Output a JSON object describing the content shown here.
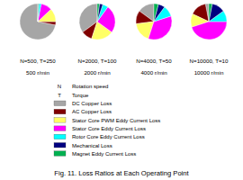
{
  "chart_data": [
    {
      "type": "pie",
      "title": "N=500, T=250",
      "subtitle": "500 r/min",
      "categories": [
        "DC Copper Loss",
        "AC Copper Loss",
        "Stator Core PWM Eddy Current Loss",
        "Stator Core Eddy Current Loss",
        "Rotor Core Eddy Current Loss",
        "Mechanical Loss",
        "Magnet Eddy Current Loss"
      ],
      "colors": [
        "#a6a6a6",
        "#800000",
        "#ffff66",
        "#ff00ff",
        "#00ffff",
        "#000080",
        "#00b050"
      ],
      "values": [
        72,
        3,
        12,
        10,
        2,
        0.5,
        0.5
      ]
    },
    {
      "type": "pie",
      "title": "N=2000, T=100",
      "subtitle": "2000 r/min",
      "categories": [
        "DC Copper Loss",
        "AC Copper Loss",
        "Stator Core PWM Eddy Current Loss",
        "Stator Core Eddy Current Loss",
        "Rotor Core Eddy Current Loss",
        "Mechanical Loss",
        "Magnet Eddy Current Loss"
      ],
      "colors": [
        "#a6a6a6",
        "#800000",
        "#ffff66",
        "#ff00ff",
        "#00ffff",
        "#000080",
        "#00b050"
      ],
      "values": [
        35,
        10,
        20,
        25,
        5,
        3,
        2
      ]
    },
    {
      "type": "pie",
      "title": "N=4000, T=50",
      "subtitle": "4000 r/min",
      "categories": [
        "DC Copper Loss",
        "AC Copper Loss",
        "Stator Core PWM Eddy Current Loss",
        "Stator Core Eddy Current Loss",
        "Rotor Core Eddy Current Loss",
        "Mechanical Loss",
        "Magnet Eddy Current Loss"
      ],
      "colors": [
        "#a6a6a6",
        "#800000",
        "#ffff66",
        "#ff00ff",
        "#00ffff",
        "#000080",
        "#00b050"
      ],
      "values": [
        15,
        12,
        18,
        35,
        10,
        6,
        4
      ]
    },
    {
      "type": "pie",
      "title": "N=10000, T=10",
      "subtitle": "10000 r/min",
      "categories": [
        "DC Copper Loss",
        "AC Copper Loss",
        "Stator Core PWM Eddy Current Loss",
        "Stator Core Eddy Current Loss",
        "Rotor Core Eddy Current Loss",
        "Mechanical Loss",
        "Magnet Eddy Current Loss"
      ],
      "colors": [
        "#a6a6a6",
        "#800000",
        "#ffff66",
        "#ff00ff",
        "#00ffff",
        "#000080",
        "#00b050"
      ],
      "values": [
        3,
        15,
        12,
        45,
        10,
        12,
        3
      ]
    }
  ],
  "symbols": [
    {
      "symbol": "N",
      "meaning": "Rotation speed"
    },
    {
      "symbol": "T",
      "meaning": "Torque"
    }
  ],
  "caption": "Fig. 11. Loss Ratios at Each Operating Point"
}
